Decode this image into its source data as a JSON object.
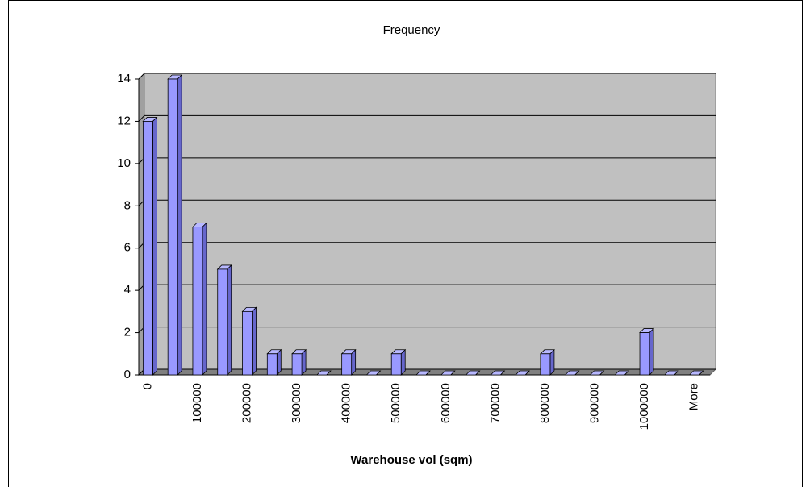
{
  "chart_data": {
    "type": "bar",
    "title": "Frequency",
    "x_label": "Warehouse vol (sqm)",
    "categories": [
      "0",
      null,
      "100000",
      null,
      "200000",
      null,
      "300000",
      null,
      "400000",
      null,
      "500000",
      null,
      "600000",
      null,
      "700000",
      null,
      "800000",
      null,
      "900000",
      null,
      "1000000",
      null,
      "More"
    ],
    "values": [
      12,
      14,
      7,
      5,
      3,
      1,
      1,
      0,
      1,
      0,
      1,
      0,
      0,
      0,
      0,
      0,
      1,
      0,
      0,
      0,
      2,
      0,
      0
    ],
    "color": "#9999ff",
    "ylim": [
      0,
      14
    ],
    "yticks": [
      0,
      2,
      4,
      6,
      8,
      10,
      12,
      14
    ],
    "grid": true
  }
}
